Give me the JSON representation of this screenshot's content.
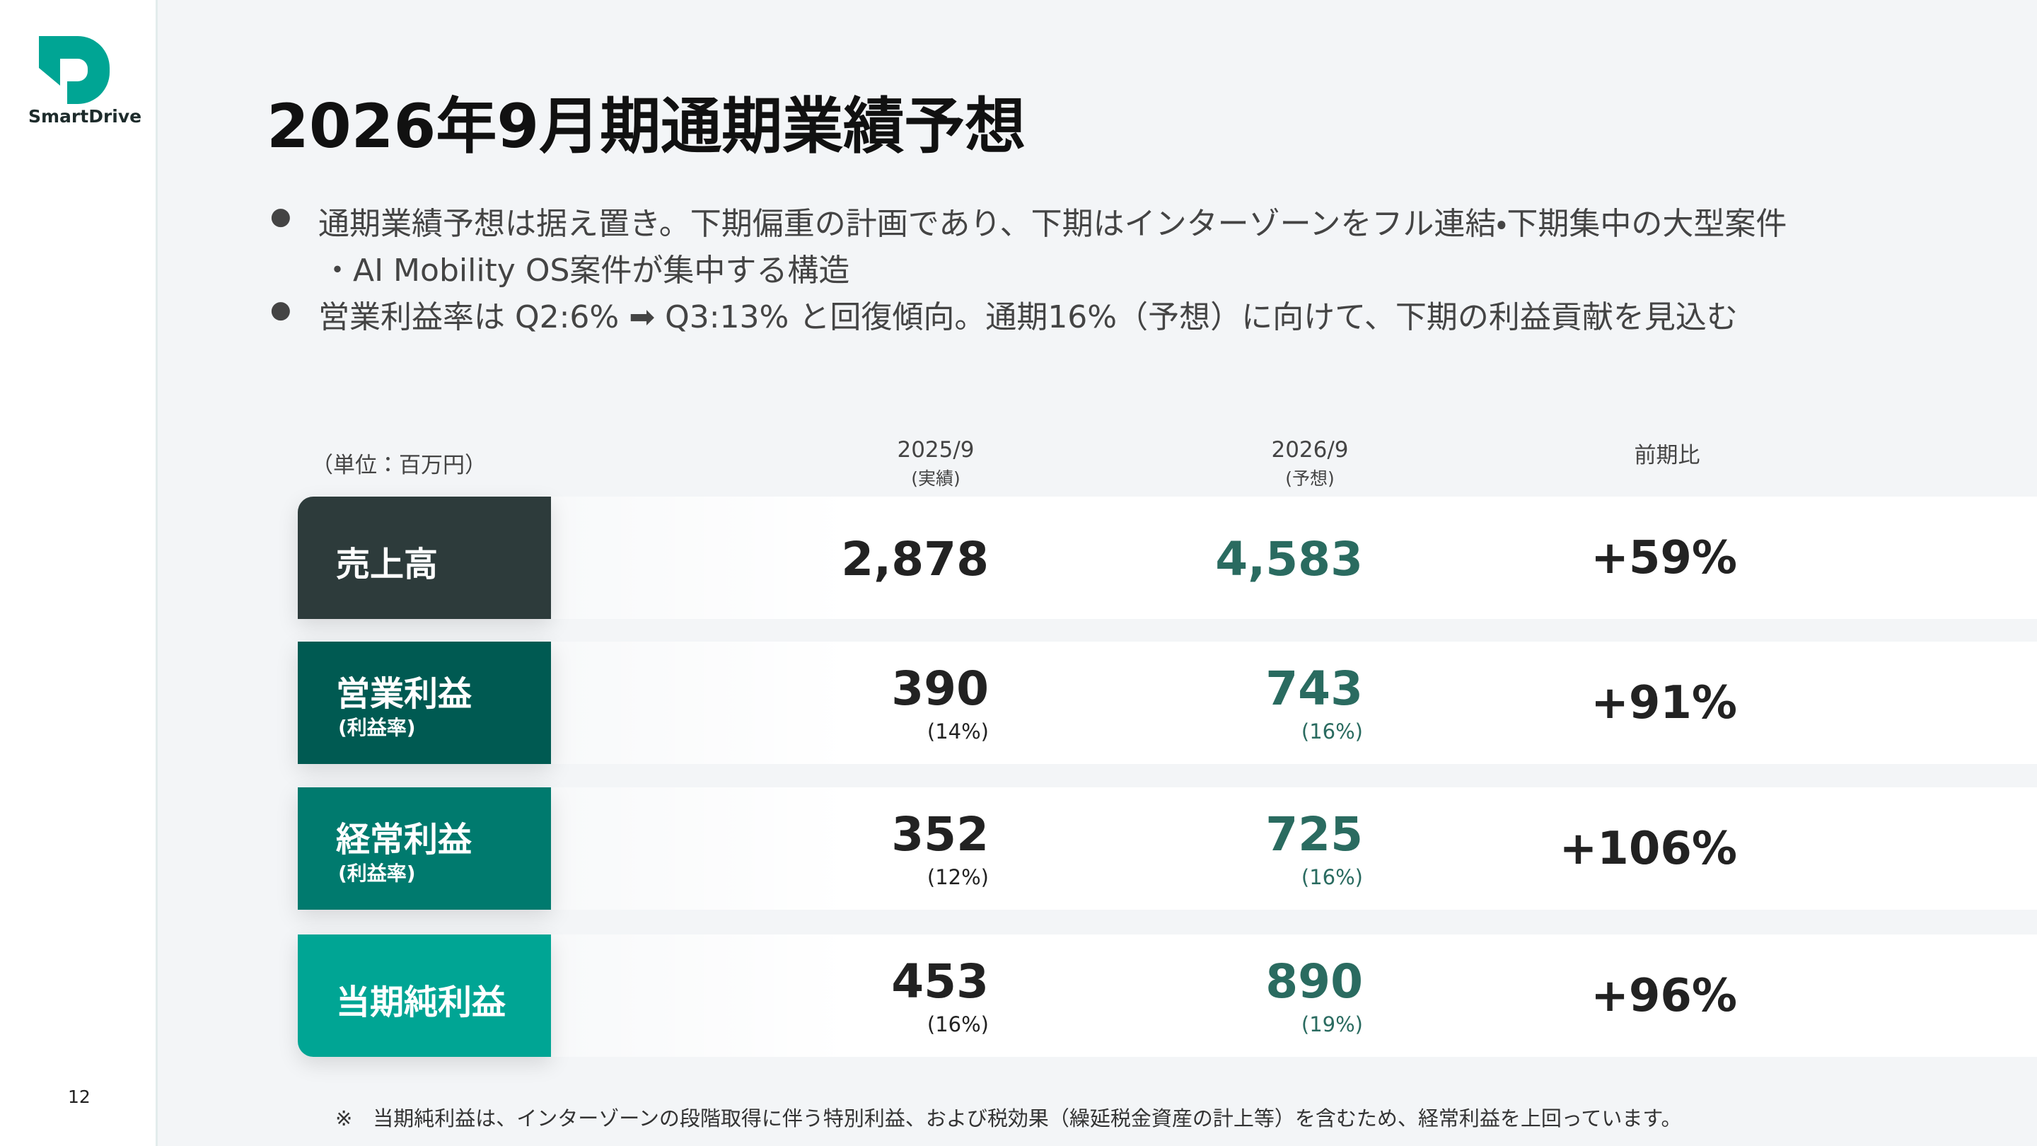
{
  "logo": {
    "text": "SmartDrive"
  },
  "title": "2026年9月期通期業績予想",
  "bullets": [
    [
      "通期業績予想は据え置き。下期偏重の計画であり、下期はインターゾーンをフル連結・下期集中の大型案件",
      "・AI Mobility OS案件が集中する構造"
    ],
    [
      "営業利益率は Q2:6% ➡ Q3:13% と回復傾向。通期16%（予想）に向けて、下期の利益貢献を見込む"
    ]
  ],
  "table": {
    "unit": "（単位：百万円）",
    "columns": [
      {
        "label": "2025/9",
        "sub": "(実績)"
      },
      {
        "label": "2026/9",
        "sub": "(予想)"
      },
      {
        "label": "前期比"
      }
    ],
    "rows": [
      {
        "label": "売上高",
        "values": [
          {
            "value": "2,878"
          },
          {
            "value": "4,583"
          }
        ],
        "change": "+59%"
      },
      {
        "label": "営業利益",
        "sub": "(利益率)",
        "values": [
          {
            "value": "390",
            "ratio": "(14%)"
          },
          {
            "value": "743",
            "ratio": "(16%)"
          }
        ],
        "change": "+91%"
      },
      {
        "label": "経常利益",
        "sub": "(利益率)",
        "values": [
          {
            "value": "352",
            "ratio": "(12%)"
          },
          {
            "value": "725",
            "ratio": "(16%)"
          }
        ],
        "change": "+106%"
      },
      {
        "label": "当期純利益",
        "values": [
          {
            "value": "453",
            "ratio": "(16%)"
          },
          {
            "value": "890",
            "ratio": "(19%)"
          }
        ],
        "change": "+96%"
      }
    ]
  },
  "footnote": "※　当期純利益は、インターゾーンの段階取得に伴う特別利益、および税効果（繰延税金資産の計上等）を含むため、経常利益を上回っています。",
  "page_number": "12"
}
